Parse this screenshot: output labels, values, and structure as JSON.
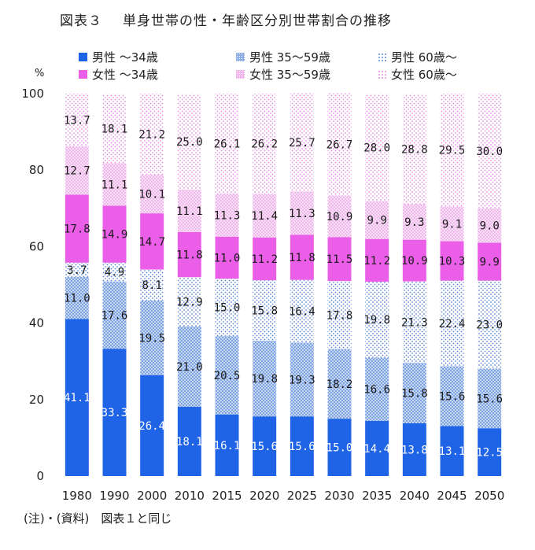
{
  "title_num": "図表３",
  "title": "単身世帯の性・年齢区分別世帯割合の推移",
  "note": "(注)・(資料)　図表１と同じ",
  "chart_data": {
    "type": "bar",
    "stacked": true,
    "ylabel": "%",
    "ylim": [
      0,
      100
    ],
    "yticks": [
      0,
      20,
      40,
      60,
      80,
      100
    ],
    "grid": false,
    "legend_position": "top",
    "categories": [
      "1980",
      "1990",
      "2000",
      "2010",
      "2015",
      "2020",
      "2025",
      "2030",
      "2035",
      "2040",
      "2045",
      "2050"
    ],
    "series": [
      {
        "name": "男性 ～34歳",
        "color": "#1f63e6",
        "pattern": "solid",
        "values": [
          41.1,
          33.3,
          26.4,
          18.1,
          16.1,
          15.6,
          15.6,
          15.0,
          14.4,
          13.8,
          13.1,
          12.5
        ]
      },
      {
        "name": "男性 35～59歳",
        "color": "#8fb0e6",
        "pattern": "dots-dense",
        "values": [
          11.0,
          17.6,
          19.5,
          21.0,
          20.5,
          19.8,
          19.3,
          18.2,
          16.6,
          15.8,
          15.6,
          15.6
        ]
      },
      {
        "name": "男性 60歳～",
        "color": "#eef3fc",
        "pattern": "dots-sparse",
        "values": [
          3.7,
          4.9,
          8.1,
          12.9,
          15.0,
          15.8,
          16.4,
          17.8,
          19.8,
          21.3,
          22.4,
          23.0
        ]
      },
      {
        "name": "女性 ～34歳",
        "color": "#ea5ee8",
        "pattern": "solid",
        "values": [
          17.8,
          14.9,
          14.7,
          11.8,
          11.0,
          11.2,
          11.8,
          11.5,
          11.2,
          10.9,
          10.3,
          9.9
        ]
      },
      {
        "name": "女性 35～59歳",
        "color": "#f2c2ef",
        "pattern": "dots-dense",
        "values": [
          12.7,
          11.1,
          10.1,
          11.1,
          11.3,
          11.4,
          11.3,
          10.9,
          9.9,
          9.3,
          9.1,
          9.0
        ]
      },
      {
        "name": "女性 60歳～",
        "color": "#fcedfb",
        "pattern": "dots-sparse",
        "values": [
          13.7,
          18.1,
          21.2,
          25.0,
          26.1,
          26.2,
          25.7,
          26.7,
          28.0,
          28.8,
          29.5,
          30.0
        ]
      }
    ]
  }
}
